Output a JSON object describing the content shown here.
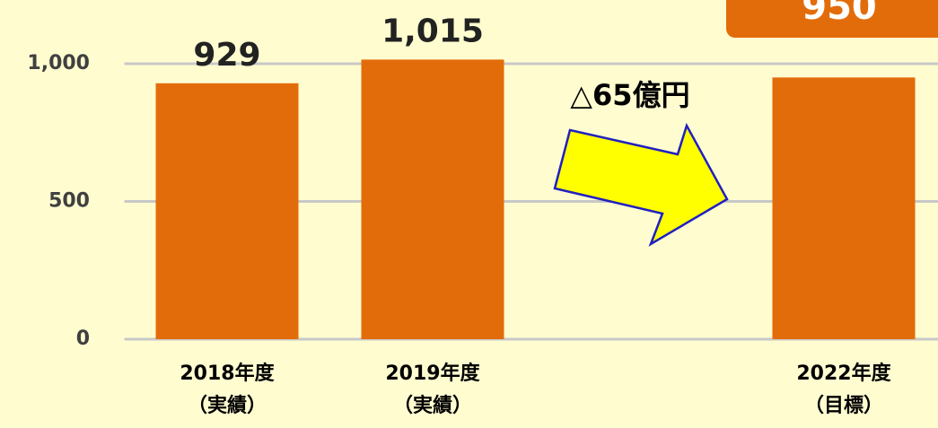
{
  "chart_data": {
    "type": "bar",
    "categories": [
      [
        "2018年度",
        "（実績）"
      ],
      [
        "2019年度",
        "（実績）"
      ],
      null,
      [
        "2022年度",
        "（目標）"
      ]
    ],
    "values": [
      929,
      1015,
      null,
      950
    ],
    "value_labels": [
      "929",
      "1,015",
      null,
      "950"
    ],
    "color": "#e36c0a",
    "ylim": [
      0,
      1200
    ],
    "yticks": [
      0,
      500,
      {
        "value": 1000,
        "label": "1,000"
      }
    ],
    "grid": true,
    "annotation": "△65億円"
  }
}
